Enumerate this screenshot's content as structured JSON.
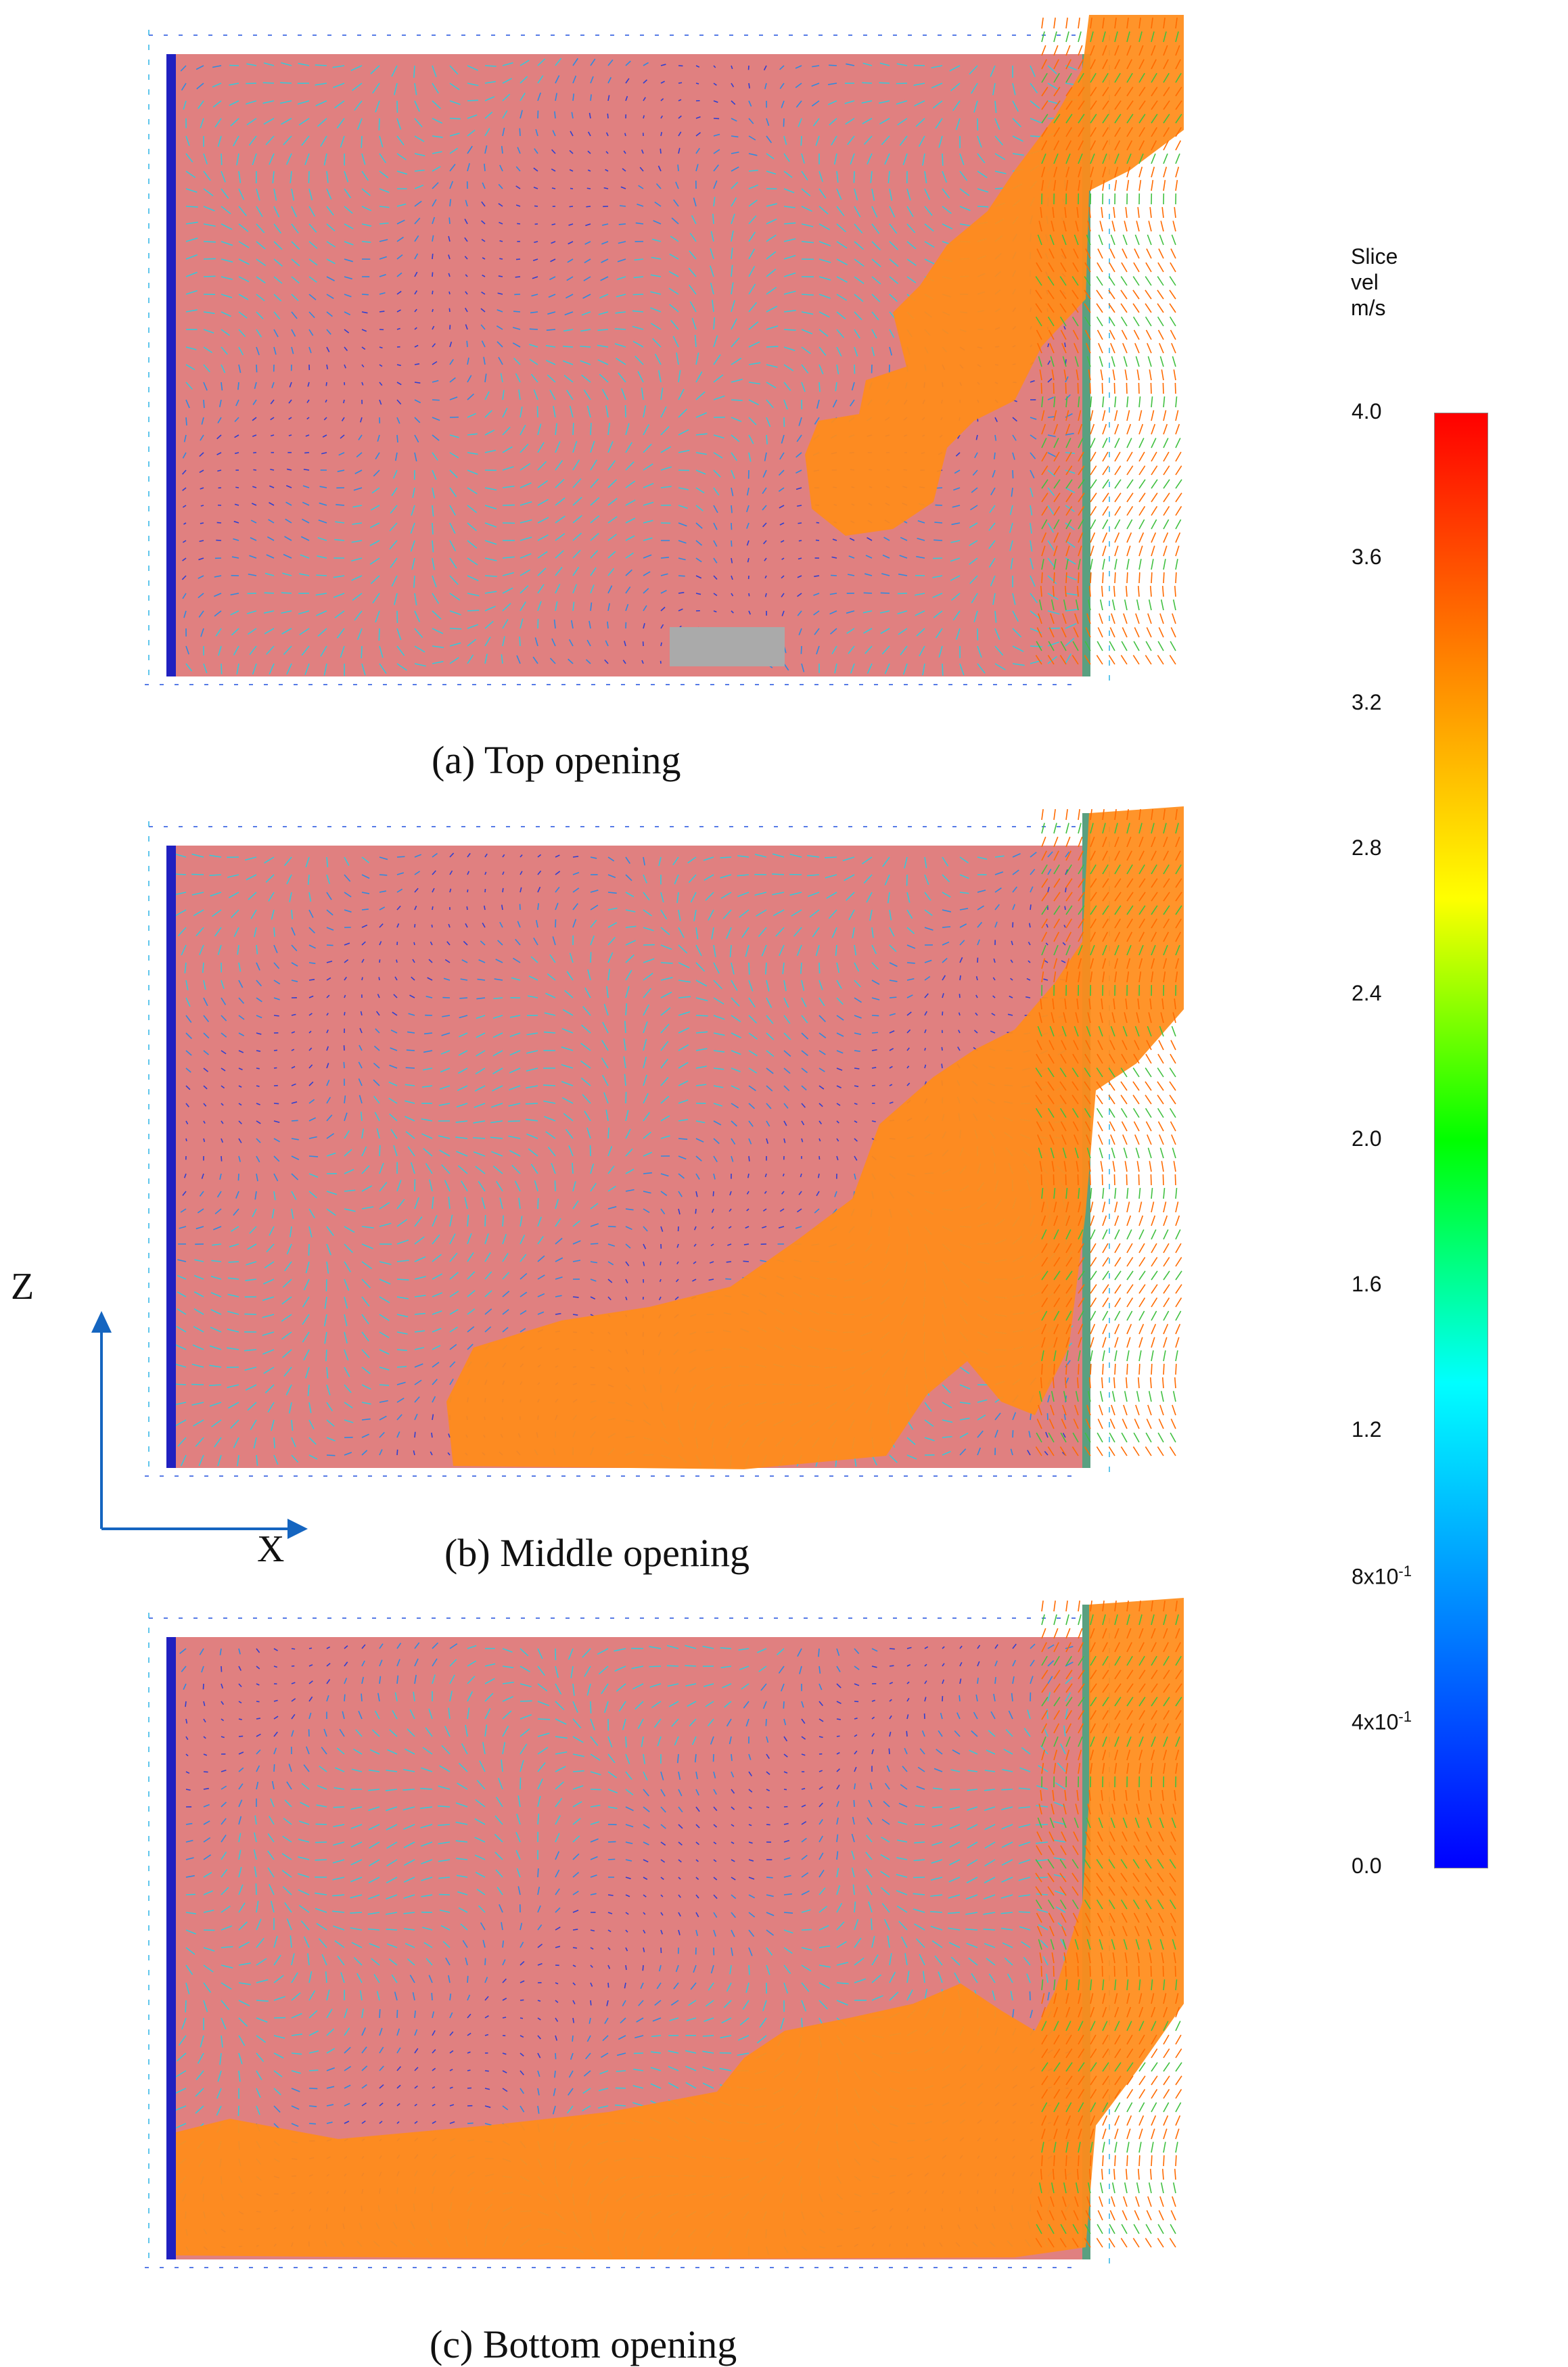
{
  "figure": {
    "panels": [
      {
        "id": "a",
        "caption": "(a) Top opening"
      },
      {
        "id": "b",
        "caption": "(b) Middle opening"
      },
      {
        "id": "c",
        "caption": "(c) Bottom opening"
      }
    ],
    "colorbar": {
      "title_lines": [
        "Slice",
        "vel",
        "m/s"
      ],
      "ticks": [
        "4.0",
        "3.6",
        "3.2",
        "2.8",
        "2.4",
        "2.0",
        "1.6",
        "1.2",
        "8x10",
        "4x10",
        "0.0"
      ],
      "tick_exponents": [
        "",
        "",
        "",
        "",
        "",
        "",
        "",
        "",
        "-1",
        "-1",
        ""
      ],
      "colors": [
        "#ff0000",
        "#ff8000",
        "#ffff00",
        "#00ff00",
        "#00ffff",
        "#0080ff",
        "#0000ff"
      ]
    },
    "axes": {
      "z_label": "Z",
      "x_label": "X",
      "arrow_color": "#1565c0"
    },
    "colors": {
      "room_fill": "#e08080",
      "smoke": "#ff8c1a",
      "wall": "#2020c0",
      "door": "#5aa080",
      "vent": "#aaaaaa"
    }
  }
}
